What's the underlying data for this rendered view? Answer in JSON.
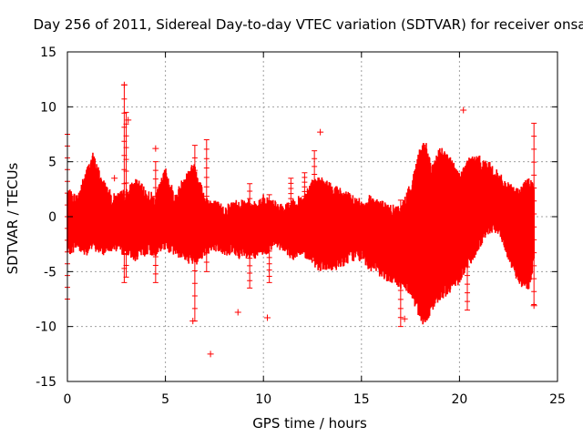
{
  "chart_data": {
    "type": "scatter",
    "title": "Day 256 of 2011, Sidereal Day-to-day VTEC variation (SDTVAR) for receiver onsa",
    "xlabel": "GPS time / hours",
    "ylabel": "SDTVAR / TECUs",
    "xlim": [
      0,
      25
    ],
    "ylim": [
      -15,
      15
    ],
    "xticks": [
      0,
      5,
      10,
      15,
      20,
      25
    ],
    "yticks": [
      -15,
      -10,
      -5,
      0,
      5,
      10,
      15
    ],
    "grid": true,
    "series_color": "#ff0000",
    "marker": "plus",
    "envelope": {
      "name": "dense SDTVAR band (approx. per-hour envelope)",
      "x": [
        0,
        0.5,
        1.0,
        1.3,
        1.8,
        2.3,
        3.0,
        3.5,
        4.0,
        4.5,
        5.0,
        5.5,
        6.0,
        6.5,
        7.0,
        7.5,
        8.0,
        8.5,
        9.0,
        9.5,
        10.0,
        10.5,
        11.0,
        11.5,
        12.0,
        12.5,
        13.0,
        13.5,
        14.0,
        14.5,
        15.0,
        15.5,
        16.0,
        16.5,
        17.0,
        17.5,
        18.0,
        18.3,
        18.6,
        19.0,
        19.5,
        20.0,
        20.5,
        21.0,
        21.5,
        22.0,
        22.5,
        23.0,
        23.5,
        23.8
      ],
      "upper": [
        2.0,
        1.5,
        4.0,
        5.3,
        3.0,
        1.5,
        2.0,
        3.0,
        2.0,
        1.5,
        4.0,
        1.5,
        3.5,
        4.5,
        1.5,
        1.0,
        0.5,
        1.0,
        1.2,
        0.8,
        1.5,
        1.0,
        0.5,
        1.0,
        1.5,
        3.0,
        3.0,
        2.5,
        2.0,
        1.5,
        1.0,
        1.5,
        1.0,
        0.5,
        0.5,
        2.5,
        6.0,
        6.2,
        4.0,
        6.0,
        5.0,
        3.5,
        5.0,
        5.0,
        4.5,
        3.5,
        2.5,
        2.0,
        3.0,
        3.0
      ],
      "lower": [
        -3.0,
        -2.5,
        -3.0,
        -2.5,
        -3.0,
        -2.5,
        -3.0,
        -3.5,
        -3.0,
        -3.0,
        -2.5,
        -3.0,
        -3.5,
        -4.0,
        -3.0,
        -2.5,
        -3.0,
        -3.0,
        -3.5,
        -3.5,
        -3.0,
        -2.5,
        -2.5,
        -3.5,
        -3.0,
        -4.0,
        -4.5,
        -4.5,
        -4.0,
        -3.5,
        -3.5,
        -4.5,
        -5.0,
        -5.5,
        -6.0,
        -6.5,
        -9.0,
        -9.5,
        -8.0,
        -7.0,
        -6.5,
        -5.5,
        -4.0,
        -2.5,
        -1.0,
        -1.0,
        -3.5,
        -5.5,
        -6.5,
        -4.0
      ]
    },
    "spikes": [
      {
        "x": 0.0,
        "low": -7.5,
        "high": 7.5
      },
      {
        "x": 2.9,
        "low": -6.0,
        "high": 12.0
      },
      {
        "x": 3.0,
        "low": -5.5,
        "high": 9.5
      },
      {
        "x": 4.5,
        "low": -6.0,
        "high": 5.0
      },
      {
        "x": 6.5,
        "low": -9.5,
        "high": 6.5
      },
      {
        "x": 7.1,
        "low": -5.0,
        "high": 7.0
      },
      {
        "x": 9.3,
        "low": -6.5,
        "high": 3.0
      },
      {
        "x": 10.3,
        "low": -6.0,
        "high": 2.0
      },
      {
        "x": 11.4,
        "low": -3.0,
        "high": 3.5
      },
      {
        "x": 12.1,
        "low": -2.0,
        "high": 4.0
      },
      {
        "x": 12.6,
        "low": -4.0,
        "high": 6.0
      },
      {
        "x": 17.0,
        "low": -10.0,
        "high": 1.5
      },
      {
        "x": 20.4,
        "low": -8.5,
        "high": 2.5
      },
      {
        "x": 23.8,
        "low": -8.0,
        "high": 8.5
      }
    ],
    "outliers": [
      {
        "x": 2.9,
        "y": 12.0
      },
      {
        "x": 3.1,
        "y": 8.8
      },
      {
        "x": 4.5,
        "y": 6.2
      },
      {
        "x": 2.4,
        "y": 3.5
      },
      {
        "x": 6.4,
        "y": -9.5
      },
      {
        "x": 7.3,
        "y": -12.5
      },
      {
        "x": 8.7,
        "y": -8.7
      },
      {
        "x": 10.2,
        "y": -9.2
      },
      {
        "x": 12.9,
        "y": 7.7
      },
      {
        "x": 20.2,
        "y": 9.7
      },
      {
        "x": 17.2,
        "y": -9.3
      },
      {
        "x": 23.8,
        "y": -8.1
      }
    ]
  }
}
